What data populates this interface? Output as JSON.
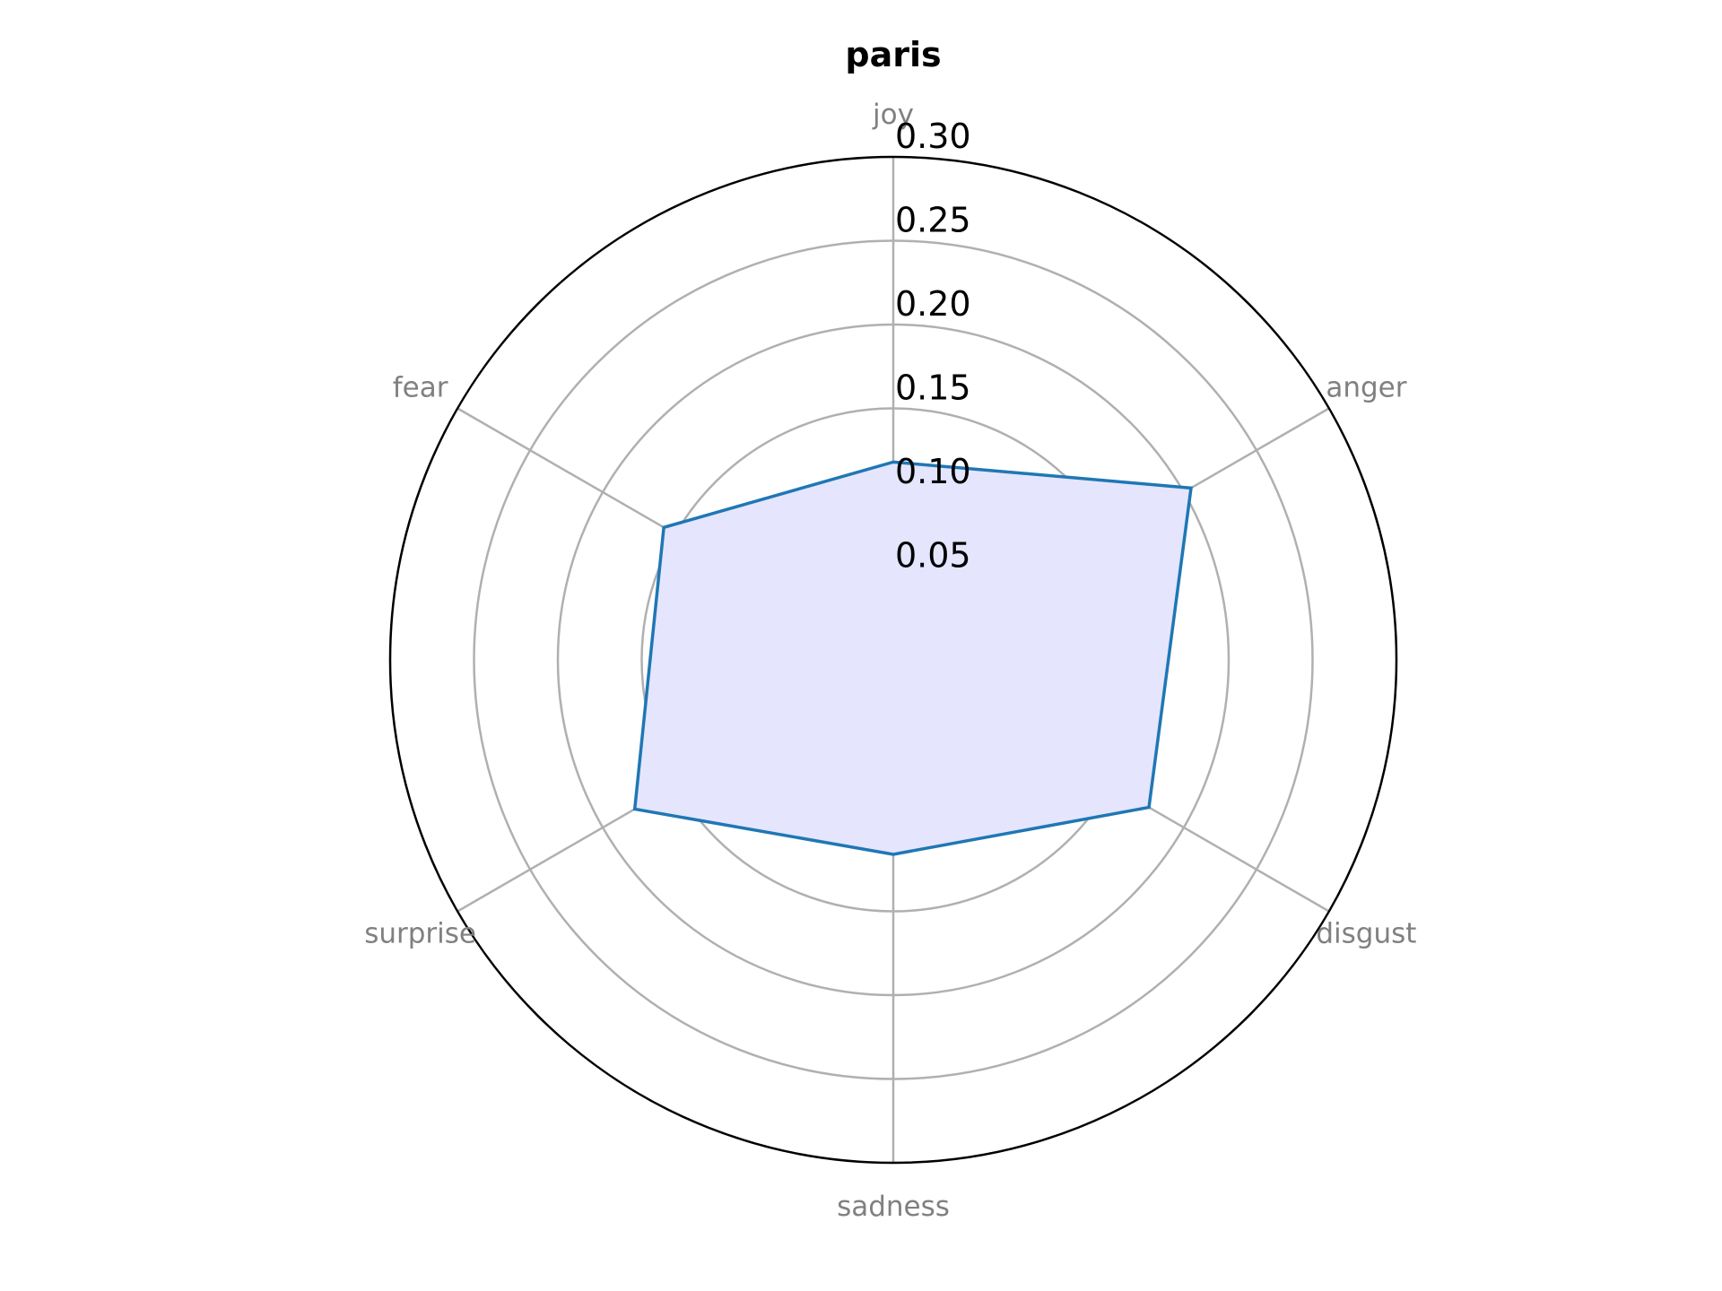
{
  "chart_data": {
    "type": "radar",
    "title": "paris",
    "categories": [
      "joy",
      "anger",
      "disgust",
      "sadness",
      "surprise",
      "fear"
    ],
    "series": [
      {
        "values": [
          0.118,
          0.205,
          0.176,
          0.116,
          0.178,
          0.158
        ]
      }
    ],
    "rlim": [
      0,
      0.3
    ],
    "rticks": [
      0.05,
      0.1,
      0.15,
      0.2,
      0.25,
      0.3
    ],
    "rtick_labels": [
      "0.05",
      "0.10",
      "0.15",
      "0.20",
      "0.25",
      "0.30"
    ],
    "grid": true,
    "colors": {
      "line": "#1f77b4",
      "fill": "#e5e5fe",
      "grid": "#b0b0b0",
      "outer_ring": "#000000",
      "category_text": "#808080"
    }
  }
}
